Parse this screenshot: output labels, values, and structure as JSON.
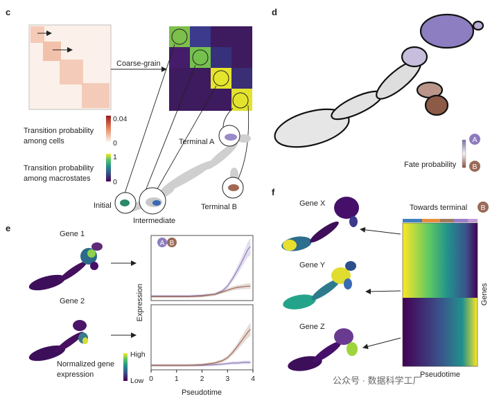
{
  "panels": {
    "c": {
      "letter": "c",
      "coarse_grain_label": "Coarse-grain",
      "cells_colorbar": {
        "label_line1": "Transition probability",
        "label_line2": "among cells",
        "max": "0.04",
        "min": "0"
      },
      "macro_colorbar": {
        "label_line1": "Transition probability",
        "label_line2": "among macrostates",
        "max": "1",
        "min": "0"
      },
      "state_labels": {
        "terminal_a": "Terminal A",
        "terminal_b": "Terminal B",
        "initial": "Initial",
        "intermediate": "Intermediate"
      }
    },
    "d": {
      "letter": "d",
      "fate_label": "Fate probability",
      "badge_a": "A",
      "badge_b": "B"
    },
    "e": {
      "letter": "e",
      "gene1": "Gene 1",
      "gene2": "Gene 2",
      "colorbar_high": "High",
      "colorbar_low": "Low",
      "colorbar_label_line1": "Normalized gene",
      "colorbar_label_line2": "expression",
      "legend_badges": [
        "A",
        "B"
      ],
      "ylabel": "Expression",
      "xlabel": "Pseudotime",
      "xticks": [
        "0",
        "1",
        "2",
        "3",
        "4"
      ]
    },
    "f": {
      "letter": "f",
      "genes": [
        "Gene X",
        "Gene Y",
        "Gene Z"
      ],
      "heatmap_title": "Towards terminal",
      "heatmap_badge": "B",
      "heatmap_xlabel": "Pseudotime",
      "heatmap_ylabel": "Genes"
    }
  },
  "watermark": "公众号 · 数据科学工厂",
  "colors": {
    "lineage_a": "#8e7bbd",
    "lineage_b": "#9a6a58",
    "viridis_low": "#440154",
    "viridis_high": "#fde725",
    "neutral_cells": "#d0d0d0"
  },
  "chart_data": [
    {
      "type": "line",
      "title": "",
      "subplot": "Gene 1",
      "xlabel": "Pseudotime",
      "ylabel": "Expression",
      "xlim": [
        0,
        4
      ],
      "x": [
        0,
        0.5,
        1,
        1.5,
        2,
        2.5,
        2.8,
        3,
        3.2,
        3.4,
        3.6,
        3.8,
        3.9
      ],
      "series": [
        {
          "name": "A",
          "values": [
            0.03,
            0.03,
            0.03,
            0.03,
            0.04,
            0.06,
            0.12,
            0.2,
            0.33,
            0.48,
            0.65,
            0.83,
            0.88
          ]
        },
        {
          "name": "B",
          "values": [
            0.02,
            0.02,
            0.02,
            0.02,
            0.03,
            0.06,
            0.1,
            0.13,
            0.16,
            0.18,
            0.19,
            0.2,
            0.2
          ]
        }
      ]
    },
    {
      "type": "line",
      "title": "",
      "subplot": "Gene 2",
      "xlabel": "Pseudotime",
      "ylabel": "Expression",
      "xlim": [
        0,
        4
      ],
      "x": [
        0,
        0.5,
        1,
        1.5,
        2,
        2.5,
        2.8,
        3,
        3.2,
        3.4,
        3.6,
        3.8,
        3.9
      ],
      "series": [
        {
          "name": "A",
          "values": [
            0.03,
            0.03,
            0.03,
            0.03,
            0.03,
            0.04,
            0.05,
            0.06,
            0.07,
            0.07,
            0.08,
            0.08,
            0.08
          ]
        },
        {
          "name": "B",
          "values": [
            0.03,
            0.03,
            0.03,
            0.03,
            0.04,
            0.07,
            0.11,
            0.16,
            0.25,
            0.36,
            0.48,
            0.6,
            0.65
          ]
        }
      ]
    }
  ]
}
